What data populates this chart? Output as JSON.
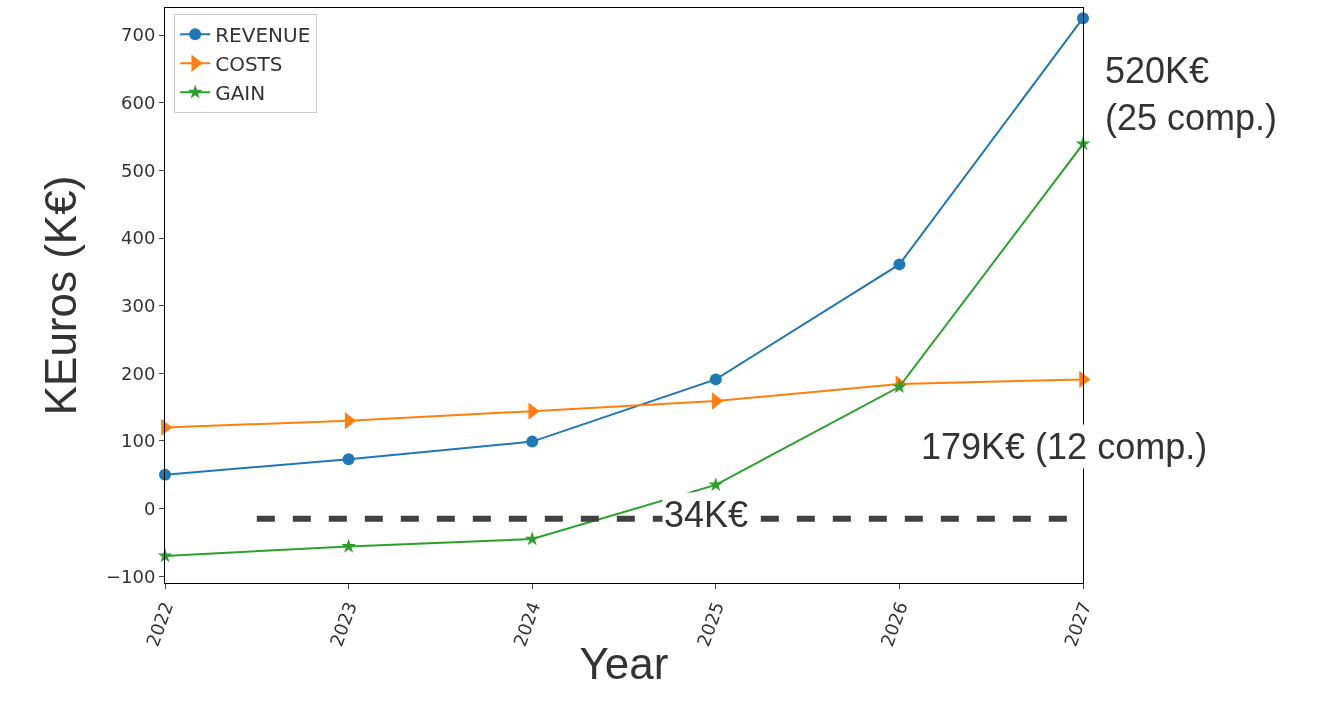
{
  "chart_data": {
    "type": "line",
    "xlabel": "Year",
    "ylabel": "KEuros (K€)",
    "x": [
      2022,
      2023,
      2024,
      2025,
      2026,
      2027
    ],
    "series": [
      {
        "name": "REVENUE",
        "color": "#1f77b4",
        "marker": "circle",
        "values": [
          50,
          73,
          99,
          191,
          361,
          725
        ]
      },
      {
        "name": "COSTS",
        "color": "#ff7f0e",
        "marker": "triangle",
        "values": [
          120,
          130,
          144,
          159,
          184,
          191
        ]
      },
      {
        "name": "GAIN",
        "color": "#2ca02c",
        "marker": "star",
        "values": [
          -70,
          -56,
          -45,
          35,
          180,
          539
        ]
      }
    ],
    "xlim": [
      2022,
      2027
    ],
    "xticks": [
      2022,
      2023,
      2024,
      2025,
      2026,
      2027
    ],
    "ylim": [
      -110,
      740
    ],
    "yticks": [
      -100,
      0,
      100,
      200,
      300,
      400,
      500,
      600,
      700
    ],
    "ref_lines": [
      {
        "axis": "y",
        "value": -15,
        "color": "#404040",
        "line_style": "dashed"
      }
    ],
    "annotations": [
      {
        "text": "520K€\n(25 comp.)",
        "x": 2027,
        "y": 539
      },
      {
        "text": "179K€ (12 comp.)",
        "x": 2026,
        "y": 180
      },
      {
        "text": "34K€",
        "x": 2025,
        "y": 35
      }
    ],
    "legend": "top left"
  }
}
